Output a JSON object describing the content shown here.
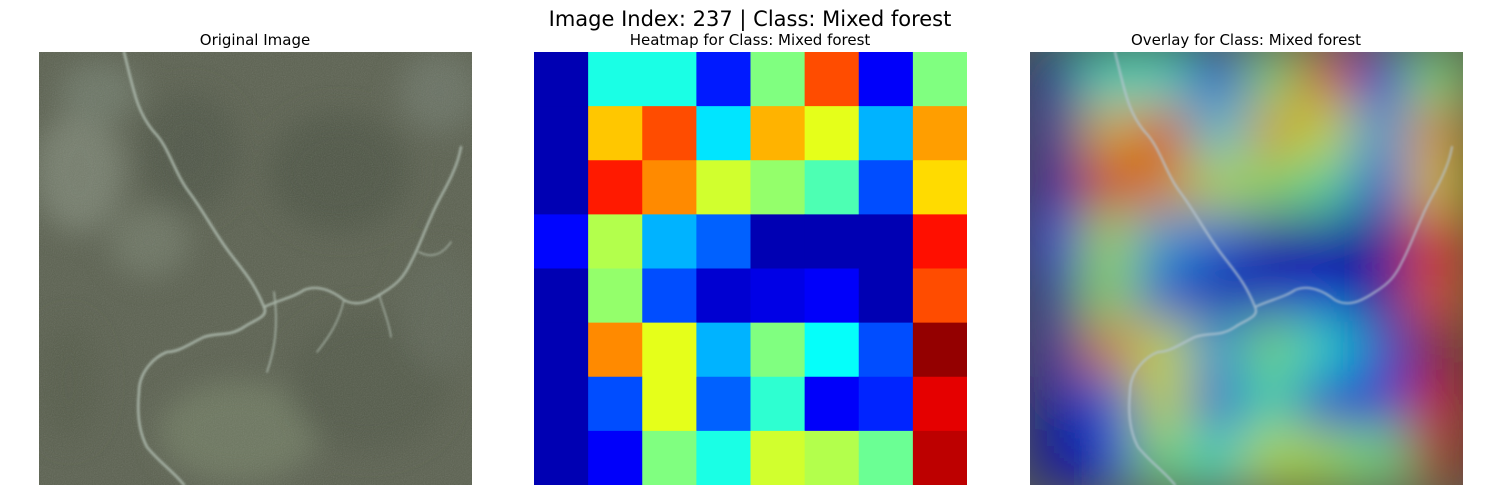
{
  "figure": {
    "title": "Image Index: 237 | Class: Mixed forest"
  },
  "panels": {
    "original": {
      "title": "Original Image"
    },
    "heatmap": {
      "title": "Heatmap for Class: Mixed forest"
    },
    "overlay": {
      "title": "Overlay for Class: Mixed forest"
    }
  },
  "heatmap_grid": {
    "colormap": "jet",
    "rows": 8,
    "cols": 8,
    "values": [
      [
        0.05,
        0.4,
        0.4,
        0.15,
        0.5,
        0.8,
        0.12,
        0.5
      ],
      [
        0.05,
        0.68,
        0.8,
        0.35,
        0.7,
        0.6,
        0.3,
        0.72
      ],
      [
        0.05,
        0.85,
        0.74,
        0.58,
        0.52,
        0.45,
        0.2,
        0.66
      ],
      [
        0.13,
        0.55,
        0.3,
        0.22,
        0.05,
        0.05,
        0.05,
        0.86
      ],
      [
        0.05,
        0.52,
        0.2,
        0.08,
        0.1,
        0.12,
        0.05,
        0.8
      ],
      [
        0.05,
        0.74,
        0.6,
        0.3,
        0.5,
        0.38,
        0.2,
        0.98
      ],
      [
        0.05,
        0.2,
        0.6,
        0.22,
        0.42,
        0.12,
        0.16,
        0.9
      ],
      [
        0.05,
        0.12,
        0.5,
        0.4,
        0.58,
        0.55,
        0.48,
        0.94
      ]
    ]
  }
}
